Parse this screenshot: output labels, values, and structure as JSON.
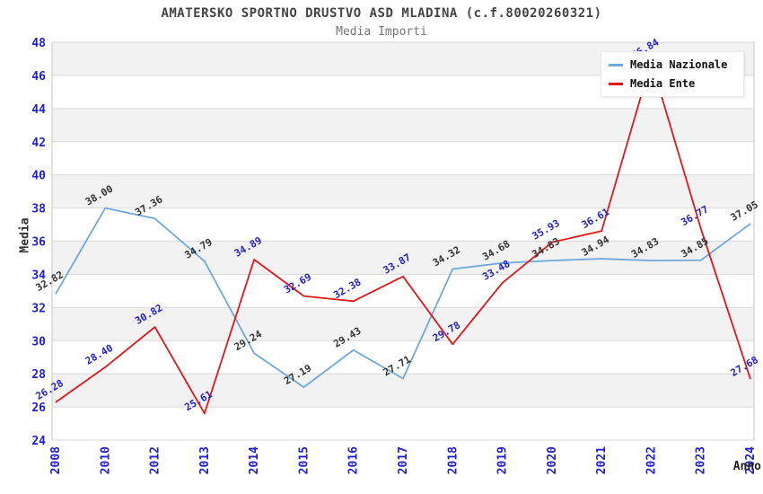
{
  "chart_data": {
    "type": "line",
    "title": "AMATERSKO SPORTNO DRUSTVO ASD MLADINA (c.f.80020260321)",
    "subtitle": "Media Importi",
    "xlabel": "Anno",
    "ylabel": "Media",
    "ylim": [
      24,
      48
    ],
    "ytick_step": 2,
    "yticks": [
      24,
      26,
      28,
      30,
      32,
      34,
      36,
      38,
      40,
      42,
      44,
      46,
      48
    ],
    "grid": "horizontal-bands-alternating",
    "legend_position": "top-right",
    "categories": [
      "2008",
      "2010",
      "2012",
      "2013",
      "2014",
      "2015",
      "2016",
      "2017",
      "2018",
      "2019",
      "2020",
      "2021",
      "2022",
      "2023",
      "2024"
    ],
    "series": [
      {
        "name": "Media Nazionale",
        "color": "#6FA8DC",
        "label_color": "#333333",
        "values": [
          32.82,
          38.0,
          37.36,
          34.79,
          29.24,
          27.19,
          29.43,
          27.71,
          34.32,
          34.68,
          34.83,
          34.94,
          34.83,
          34.85,
          37.05
        ]
      },
      {
        "name": "Media Ente",
        "color": "#E01818",
        "label_color": "#2222CC",
        "values": [
          26.28,
          28.4,
          30.82,
          25.61,
          34.89,
          32.69,
          32.38,
          33.87,
          29.78,
          33.48,
          35.93,
          36.61,
          46.84,
          36.77,
          27.68
        ]
      }
    ],
    "palette": {
      "band_gray": "#F2F2F2",
      "band_white": "#FFFFFF",
      "gridline": "#D9D9D9",
      "axis_border": "#C4C4C4",
      "tick_label": "#2020CC",
      "title_color": "#444444",
      "subtitle_color": "#777777",
      "axis_title_color": "#222222"
    }
  }
}
